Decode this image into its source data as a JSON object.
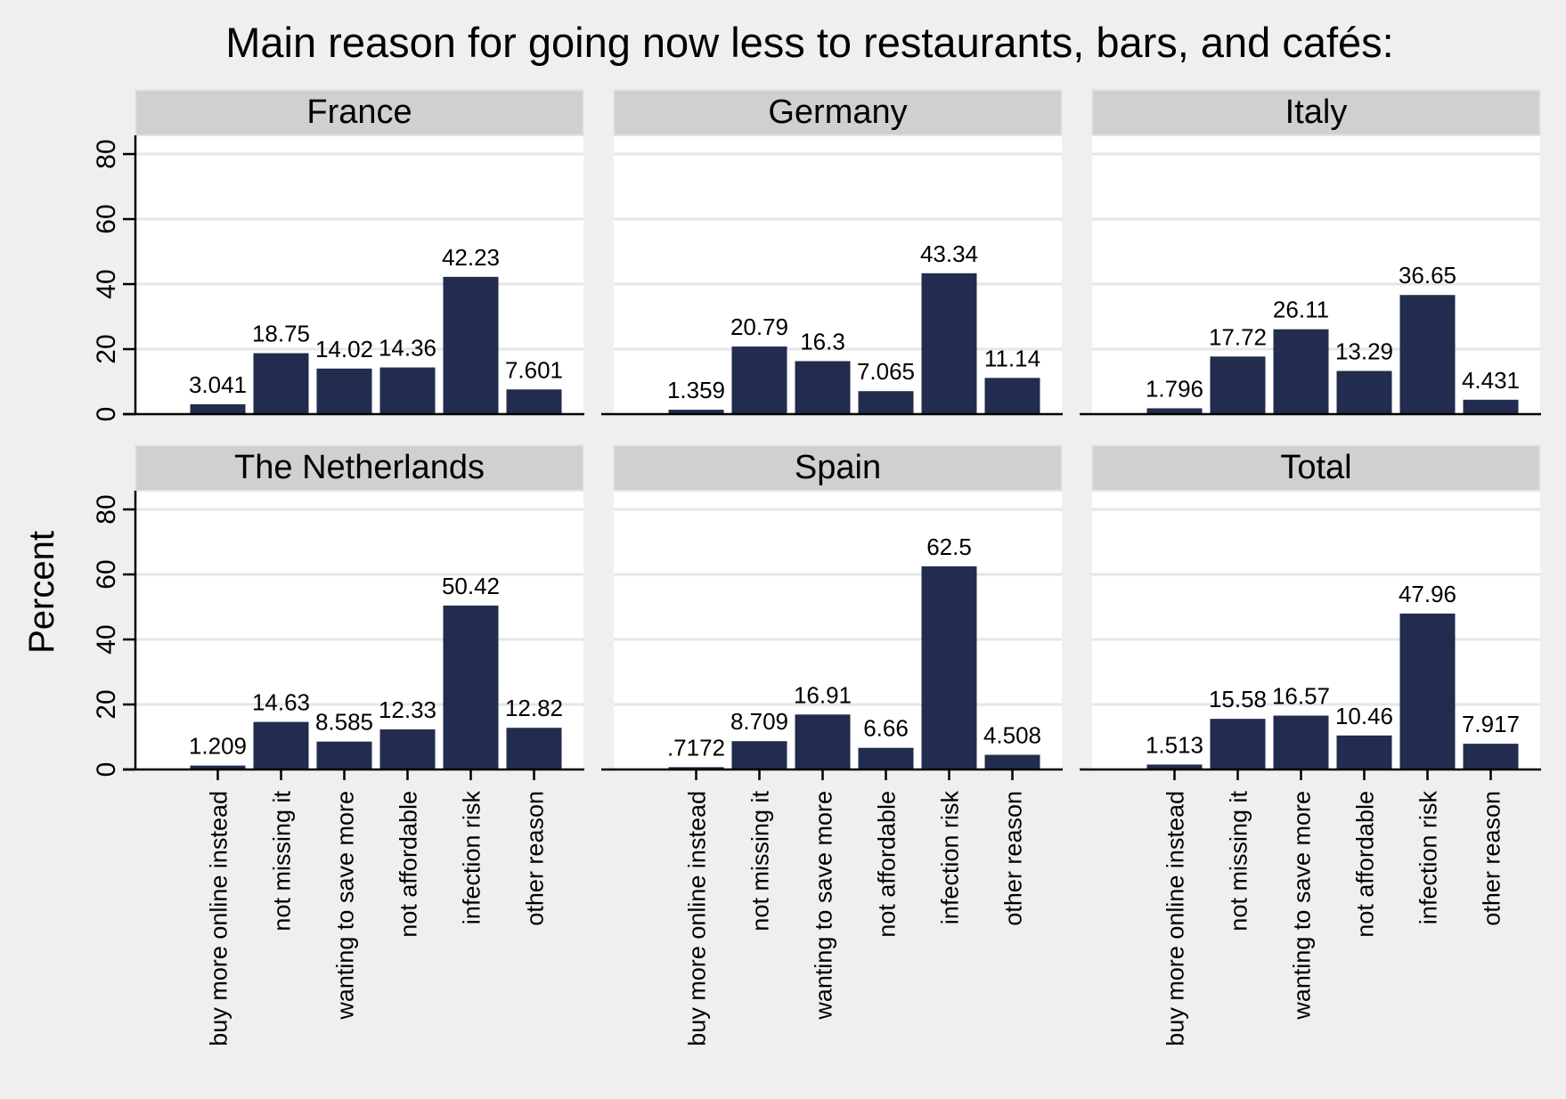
{
  "chart_data": {
    "type": "bar",
    "title": "Main reason for going now less to restaurants, bars, and cafés:",
    "ylabel": "Percent",
    "ylim": [
      0,
      85
    ],
    "yticks": [
      0,
      20,
      40,
      60,
      80
    ],
    "grid": true,
    "categories": [
      "buy more online instead",
      "not missing it",
      "wanting to save more",
      "not affordable",
      "infection risk",
      "other reason"
    ],
    "bar_color": "#212c4f",
    "panels": [
      {
        "name": "France",
        "values": [
          3.041,
          18.75,
          14.02,
          14.36,
          42.23,
          7.601
        ],
        "labels": [
          "3.041",
          "18.75",
          "14.02",
          "14.36",
          "42.23",
          "7.601"
        ]
      },
      {
        "name": "Germany",
        "values": [
          1.359,
          20.79,
          16.3,
          7.065,
          43.34,
          11.14
        ],
        "labels": [
          "1.359",
          "20.79",
          "16.3",
          "7.065",
          "43.34",
          "11.14"
        ]
      },
      {
        "name": "Italy",
        "values": [
          1.796,
          17.72,
          26.11,
          13.29,
          36.65,
          4.431
        ],
        "labels": [
          "1.796",
          "17.72",
          "26.11",
          "13.29",
          "36.65",
          "4.431"
        ]
      },
      {
        "name": "The Netherlands",
        "values": [
          1.209,
          14.63,
          8.585,
          12.33,
          50.42,
          12.82
        ],
        "labels": [
          "1.209",
          "14.63",
          "8.585",
          "12.33",
          "50.42",
          "12.82"
        ]
      },
      {
        "name": "Spain",
        "values": [
          0.7172,
          8.709,
          16.91,
          6.66,
          62.5,
          4.508
        ],
        "labels": [
          ".7172",
          "8.709",
          "16.91",
          "6.66",
          "62.5",
          "4.508"
        ]
      },
      {
        "name": "Total",
        "values": [
          1.513,
          15.58,
          16.57,
          10.46,
          47.96,
          7.917
        ],
        "labels": [
          "1.513",
          "15.58",
          "16.57",
          "10.46",
          "47.96",
          "7.917"
        ]
      }
    ]
  }
}
